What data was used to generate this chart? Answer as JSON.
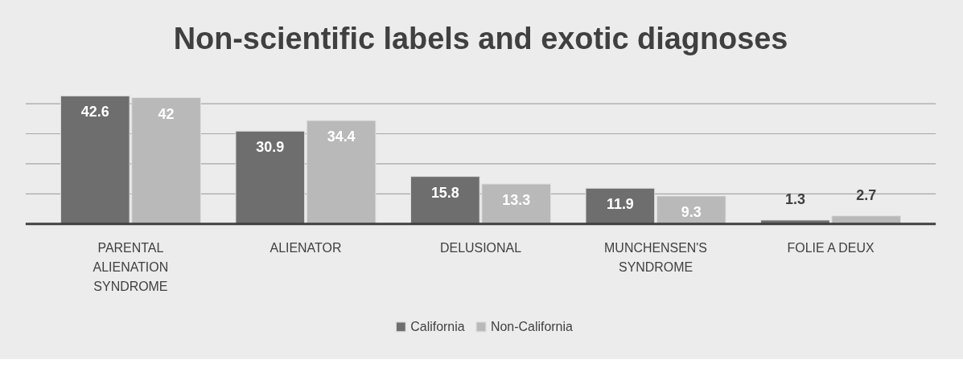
{
  "chart_data": {
    "type": "bar",
    "title": "Non-scientific labels and exotic diagnoses",
    "categories": [
      "PARENTAL ALIENATION SYNDROME",
      "ALIENATOR",
      "DELUSIONAL",
      "MUNCHENSEN'S SYNDROME",
      "FOLIE A DEUX"
    ],
    "series": [
      {
        "name": "California",
        "color": "#6e6e6e",
        "values": [
          42.6,
          30.9,
          15.8,
          11.9,
          1.3
        ]
      },
      {
        "name": "Non-California",
        "color": "#b9b9b9",
        "values": [
          42,
          34.4,
          13.3,
          9.3,
          2.7
        ]
      }
    ],
    "yticks": [
      {
        "value": 0,
        "label": null
      },
      {
        "value": 10,
        "label": null
      },
      {
        "value": 20,
        "label": null
      },
      {
        "value": 30,
        "label": null
      },
      {
        "value": 40,
        "label": null
      }
    ],
    "tick_labels": "x",
    "grid": "y",
    "legend": "bottom",
    "data_labels": true
  }
}
